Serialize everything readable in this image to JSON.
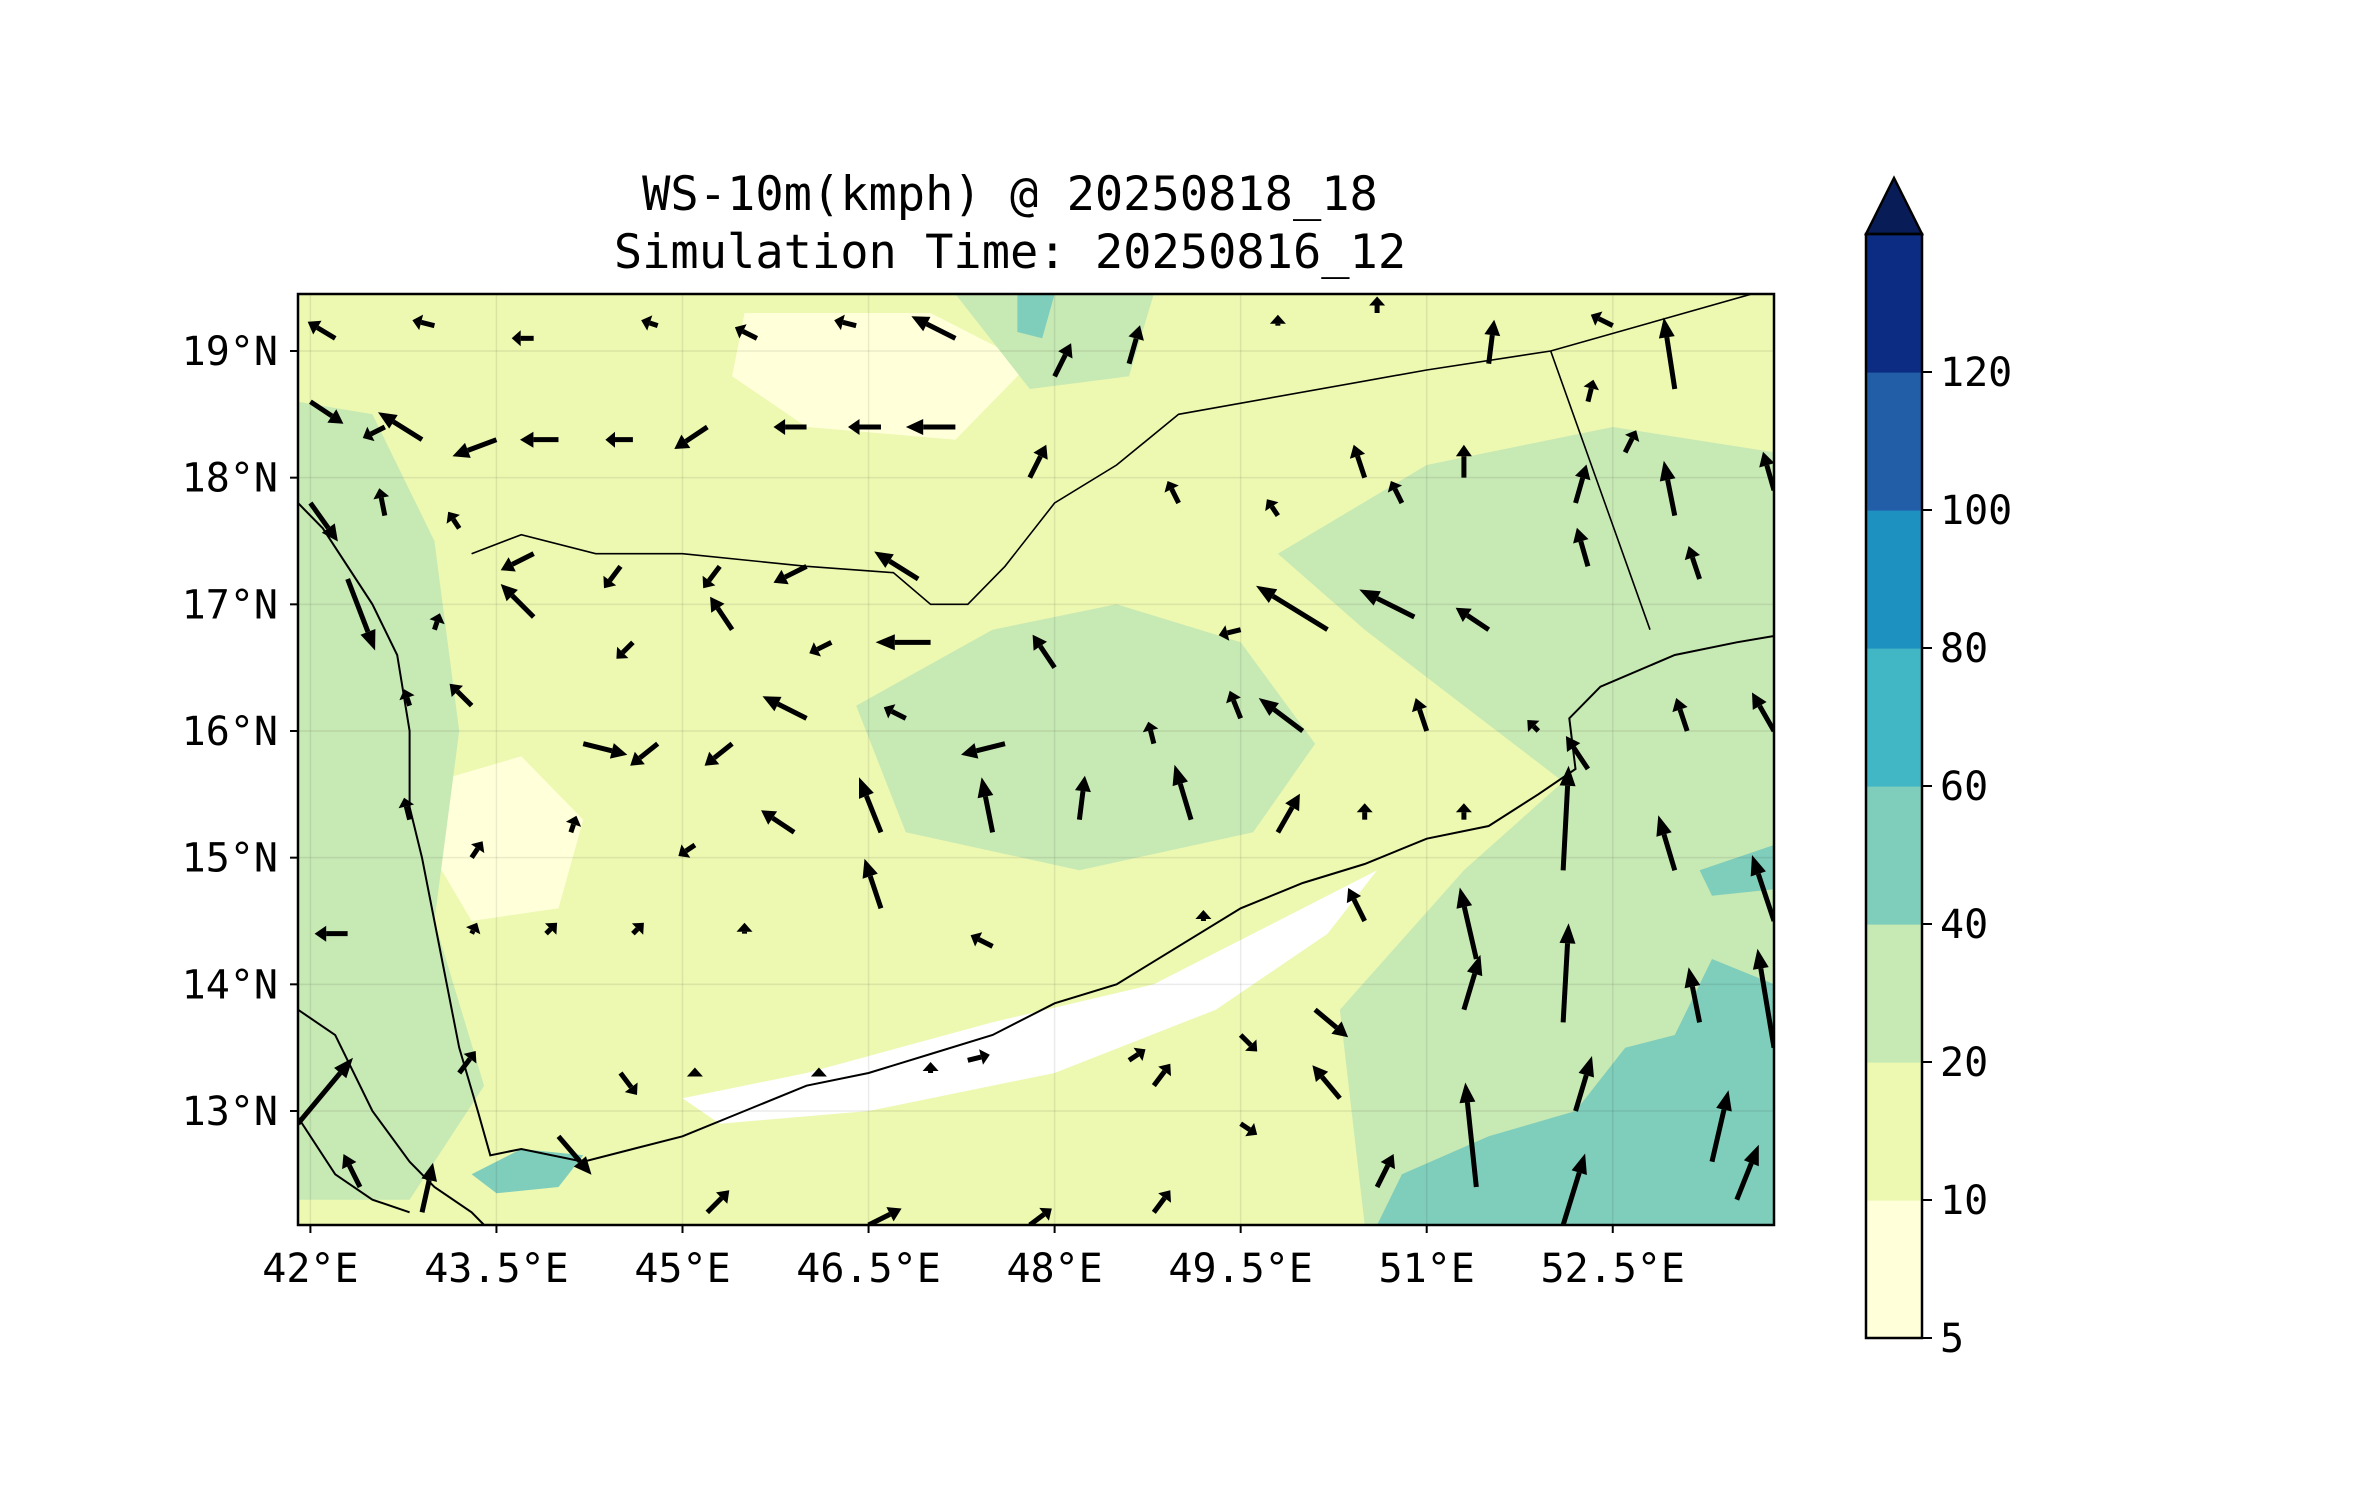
{
  "chart_data": {
    "type": "heatmap",
    "title_line1": "WS-10m(kmph) @ 20250818_18",
    "title_line2": "Simulation Time: 20250816_12",
    "x_ticks": [
      "42°E",
      "43.5°E",
      "45°E",
      "46.5°E",
      "48°E",
      "49.5°E",
      "51°E",
      "52.5°E"
    ],
    "x_tick_values": [
      42,
      43.5,
      45,
      46.5,
      48,
      49.5,
      51,
      52.5
    ],
    "y_ticks": [
      "19°N",
      "18°N",
      "17°N",
      "16°N",
      "15°N",
      "14°N",
      "13°N"
    ],
    "y_tick_values": [
      19,
      18,
      17,
      16,
      15,
      14,
      13
    ],
    "xlim": [
      41.9,
      53.8
    ],
    "ylim": [
      12.1,
      19.45
    ],
    "colorbar": {
      "levels": [
        5,
        10,
        20,
        40,
        60,
        80,
        100,
        120
      ],
      "labels": [
        "5",
        "10",
        "20",
        "40",
        "60",
        "80",
        "100",
        "120"
      ],
      "colors": [
        "#ffffd9",
        "#edf8b1",
        "#c7e9b4",
        "#7fcdbb",
        "#41b6c4",
        "#1d91c0",
        "#225ea8",
        "#0c2c84"
      ],
      "extend_color": "#081d58",
      "extend": "max"
    },
    "background_color": "#edf8b1",
    "regions": [
      {
        "name": "calm-gulf",
        "color": "#ffffff",
        "points": [
          [
            45.0,
            13.1
          ],
          [
            46.0,
            13.3
          ],
          [
            47.5,
            13.7
          ],
          [
            48.8,
            14.0
          ],
          [
            49.8,
            14.5
          ],
          [
            50.6,
            14.9
          ],
          [
            50.2,
            14.4
          ],
          [
            49.3,
            13.8
          ],
          [
            48.0,
            13.3
          ],
          [
            46.5,
            13.0
          ],
          [
            45.3,
            12.9
          ]
        ]
      },
      {
        "name": "calm-tihama",
        "color": "#ffffd9",
        "points": [
          [
            43.0,
            15.6
          ],
          [
            43.7,
            15.8
          ],
          [
            44.2,
            15.3
          ],
          [
            44.0,
            14.6
          ],
          [
            43.3,
            14.5
          ],
          [
            43.0,
            15.0
          ]
        ]
      },
      {
        "name": "calm-north",
        "color": "#ffffd9",
        "points": [
          [
            45.5,
            19.3
          ],
          [
            47.0,
            19.3
          ],
          [
            47.8,
            18.9
          ],
          [
            47.2,
            18.3
          ],
          [
            46.0,
            18.4
          ],
          [
            45.4,
            18.8
          ]
        ]
      },
      {
        "name": "moderate-west",
        "color": "#c7e9b4",
        "points": [
          [
            41.9,
            18.6
          ],
          [
            42.5,
            18.5
          ],
          [
            43.0,
            17.5
          ],
          [
            43.2,
            16.0
          ],
          [
            43.0,
            14.5
          ],
          [
            43.4,
            13.2
          ],
          [
            42.8,
            12.3
          ],
          [
            41.9,
            12.3
          ]
        ]
      },
      {
        "name": "moderate-central",
        "color": "#c7e9b4",
        "points": [
          [
            46.4,
            16.2
          ],
          [
            47.5,
            16.8
          ],
          [
            48.5,
            17.0
          ],
          [
            49.5,
            16.7
          ],
          [
            50.1,
            15.9
          ],
          [
            49.6,
            15.2
          ],
          [
            48.2,
            14.9
          ],
          [
            46.8,
            15.2
          ]
        ]
      },
      {
        "name": "moderate-east",
        "color": "#c7e9b4",
        "points": [
          [
            49.8,
            17.4
          ],
          [
            51.0,
            18.1
          ],
          [
            52.5,
            18.4
          ],
          [
            53.8,
            18.2
          ],
          [
            53.8,
            12.1
          ],
          [
            50.5,
            12.1
          ],
          [
            50.3,
            13.8
          ],
          [
            51.3,
            14.9
          ],
          [
            52.1,
            15.6
          ],
          [
            51.3,
            16.2
          ],
          [
            50.5,
            16.8
          ]
        ]
      },
      {
        "name": "moderate-north",
        "color": "#c7e9b4",
        "points": [
          [
            47.2,
            19.45
          ],
          [
            48.8,
            19.45
          ],
          [
            48.6,
            18.8
          ],
          [
            47.8,
            18.7
          ]
        ]
      },
      {
        "name": "strong-sea",
        "color": "#7fcdbb",
        "points": [
          [
            50.6,
            12.1
          ],
          [
            53.8,
            12.1
          ],
          [
            53.8,
            14.0
          ],
          [
            53.3,
            14.2
          ],
          [
            53.0,
            13.6
          ],
          [
            52.6,
            13.5
          ],
          [
            52.2,
            13.0
          ],
          [
            51.5,
            12.8
          ],
          [
            50.8,
            12.5
          ]
        ]
      },
      {
        "name": "strong-bab",
        "color": "#7fcdbb",
        "points": [
          [
            43.3,
            12.5
          ],
          [
            43.7,
            12.7
          ],
          [
            44.2,
            12.65
          ],
          [
            44.0,
            12.4
          ],
          [
            43.5,
            12.35
          ]
        ]
      },
      {
        "name": "strong-north",
        "color": "#7fcdbb",
        "points": [
          [
            47.7,
            19.45
          ],
          [
            48.0,
            19.45
          ],
          [
            47.9,
            19.1
          ],
          [
            47.7,
            19.15
          ]
        ]
      },
      {
        "name": "strong-east-spot",
        "color": "#7fcdbb",
        "points": [
          [
            53.2,
            14.9
          ],
          [
            53.8,
            15.1
          ],
          [
            53.8,
            14.75
          ],
          [
            53.3,
            14.7
          ]
        ]
      }
    ],
    "coastlines": [
      [
        [
          41.9,
          17.8
        ],
        [
          42.1,
          17.6
        ],
        [
          42.5,
          17.0
        ],
        [
          42.7,
          16.6
        ],
        [
          42.8,
          16.0
        ],
        [
          42.8,
          15.4
        ],
        [
          42.9,
          15.0
        ],
        [
          43.0,
          14.5
        ],
        [
          43.1,
          14.0
        ],
        [
          43.2,
          13.5
        ],
        [
          43.35,
          13.0
        ],
        [
          43.45,
          12.65
        ],
        [
          43.7,
          12.7
        ],
        [
          44.2,
          12.6
        ],
        [
          44.6,
          12.7
        ],
        [
          45.0,
          12.8
        ],
        [
          45.5,
          13.0
        ],
        [
          46.0,
          13.2
        ],
        [
          46.5,
          13.3
        ],
        [
          47.0,
          13.45
        ],
        [
          47.5,
          13.6
        ],
        [
          48.0,
          13.85
        ],
        [
          48.5,
          14.0
        ],
        [
          49.0,
          14.3
        ],
        [
          49.5,
          14.6
        ],
        [
          50.0,
          14.8
        ],
        [
          50.5,
          14.95
        ],
        [
          51.0,
          15.15
        ],
        [
          51.5,
          15.25
        ],
        [
          51.9,
          15.5
        ],
        [
          52.2,
          15.7
        ],
        [
          52.15,
          16.1
        ],
        [
          52.4,
          16.35
        ],
        [
          53.0,
          16.6
        ],
        [
          53.5,
          16.7
        ],
        [
          53.8,
          16.75
        ]
      ],
      [
        [
          41.9,
          13.8
        ],
        [
          42.2,
          13.6
        ],
        [
          42.5,
          13.0
        ],
        [
          42.8,
          12.6
        ],
        [
          43.0,
          12.4
        ],
        [
          43.3,
          12.2
        ],
        [
          43.4,
          12.1
        ]
      ],
      [
        [
          41.9,
          12.95
        ],
        [
          42.2,
          12.5
        ],
        [
          42.5,
          12.3
        ],
        [
          42.8,
          12.2
        ]
      ]
    ],
    "borders": [
      [
        [
          43.3,
          17.4
        ],
        [
          43.7,
          17.55
        ],
        [
          44.3,
          17.4
        ],
        [
          45.0,
          17.4
        ],
        [
          46.0,
          17.3
        ],
        [
          46.7,
          17.25
        ],
        [
          47.0,
          17.0
        ],
        [
          47.3,
          17.0
        ],
        [
          47.6,
          17.3
        ],
        [
          48.0,
          17.8
        ],
        [
          48.5,
          18.1
        ],
        [
          49.0,
          18.5
        ],
        [
          51.0,
          18.85
        ],
        [
          52.0,
          19.0
        ],
        [
          53.8,
          19.5
        ]
      ],
      [
        [
          52.0,
          19.0
        ],
        [
          52.8,
          16.8
        ]
      ]
    ],
    "vectors": [
      [
        42.0,
        18.6,
        60,
        -40
      ],
      [
        42.6,
        18.4,
        -40,
        -20
      ],
      [
        42.9,
        18.3,
        -80,
        50
      ],
      [
        43.5,
        18.3,
        -80,
        -30
      ],
      [
        44.0,
        18.3,
        -70,
        0
      ],
      [
        44.6,
        18.3,
        -50,
        0
      ],
      [
        45.2,
        18.4,
        -60,
        -40
      ],
      [
        46.0,
        18.4,
        -60,
        0
      ],
      [
        46.6,
        18.4,
        -60,
        0
      ],
      [
        47.2,
        18.4,
        -90,
        0
      ],
      [
        42.0,
        17.8,
        50,
        -70
      ],
      [
        42.6,
        17.7,
        -10,
        50
      ],
      [
        43.2,
        17.6,
        -20,
        30
      ],
      [
        43.8,
        17.4,
        -60,
        -30
      ],
      [
        44.5,
        17.3,
        -30,
        -40
      ],
      [
        45.3,
        17.3,
        -30,
        -40
      ],
      [
        46.0,
        17.3,
        -60,
        -30
      ],
      [
        46.9,
        17.2,
        -80,
        50
      ],
      [
        42.3,
        17.2,
        50,
        -130
      ],
      [
        43.0,
        16.8,
        10,
        30
      ],
      [
        43.8,
        16.9,
        -60,
        60
      ],
      [
        44.6,
        16.7,
        -30,
        -30
      ],
      [
        45.4,
        16.8,
        -40,
        60
      ],
      [
        46.2,
        16.7,
        -40,
        -20
      ],
      [
        47.0,
        16.7,
        -100,
        0
      ],
      [
        48.0,
        16.5,
        -40,
        60
      ],
      [
        49.5,
        16.8,
        -40,
        -10
      ],
      [
        50.2,
        16.8,
        -130,
        80
      ],
      [
        50.9,
        16.9,
        -100,
        50
      ],
      [
        51.5,
        16.8,
        -60,
        40
      ],
      [
        42.8,
        16.2,
        -10,
        30
      ],
      [
        43.3,
        16.2,
        -40,
        40
      ],
      [
        44.2,
        15.9,
        80,
        -20
      ],
      [
        44.8,
        15.9,
        -50,
        -40
      ],
      [
        45.4,
        15.9,
        -50,
        -40
      ],
      [
        46.0,
        16.1,
        -80,
        40
      ],
      [
        46.8,
        16.1,
        -40,
        20
      ],
      [
        47.6,
        15.9,
        -80,
        -20
      ],
      [
        48.8,
        15.9,
        -10,
        40
      ],
      [
        49.5,
        16.1,
        -20,
        50
      ],
      [
        50.0,
        16.0,
        -80,
        60
      ],
      [
        51.0,
        16.0,
        -20,
        60
      ],
      [
        51.9,
        16.0,
        -20,
        20
      ],
      [
        52.3,
        15.7,
        -40,
        60
      ],
      [
        53.1,
        16.0,
        -20,
        60
      ],
      [
        53.8,
        16.0,
        -40,
        70
      ],
      [
        42.8,
        15.3,
        -10,
        40
      ],
      [
        43.3,
        15.0,
        20,
        30
      ],
      [
        44.1,
        15.2,
        10,
        30
      ],
      [
        45.1,
        15.1,
        -30,
        -20
      ],
      [
        45.9,
        15.2,
        -60,
        40
      ],
      [
        46.6,
        15.2,
        -40,
        100
      ],
      [
        47.5,
        15.2,
        -20,
        100
      ],
      [
        48.2,
        15.3,
        10,
        80
      ],
      [
        49.1,
        15.3,
        -30,
        100
      ],
      [
        49.8,
        15.2,
        40,
        70
      ],
      [
        50.5,
        15.3,
        0,
        30
      ],
      [
        51.3,
        15.3,
        0,
        30
      ],
      [
        52.1,
        14.9,
        10,
        190
      ],
      [
        53.0,
        14.9,
        -30,
        100
      ],
      [
        53.8,
        14.5,
        -40,
        120
      ],
      [
        42.3,
        14.4,
        -60,
        0
      ],
      [
        43.3,
        14.4,
        10,
        20
      ],
      [
        43.9,
        14.4,
        20,
        20
      ],
      [
        44.6,
        14.4,
        20,
        20
      ],
      [
        45.5,
        14.4,
        0,
        20
      ],
      [
        46.6,
        14.6,
        -30,
        90
      ],
      [
        47.5,
        14.3,
        -40,
        20
      ],
      [
        49.2,
        14.5,
        0,
        20
      ],
      [
        50.5,
        14.5,
        -30,
        60
      ],
      [
        51.4,
        14.2,
        -30,
        130
      ],
      [
        52.1,
        13.7,
        10,
        180
      ],
      [
        53.2,
        13.7,
        -20,
        100
      ],
      [
        53.8,
        13.5,
        -30,
        180
      ],
      [
        41.9,
        12.9,
        100,
        120
      ],
      [
        43.2,
        13.3,
        30,
        40
      ],
      [
        44.5,
        13.3,
        30,
        -40
      ],
      [
        45.1,
        13.3,
        0,
        10
      ],
      [
        46.1,
        13.3,
        0,
        10
      ],
      [
        47.0,
        13.3,
        0,
        20
      ],
      [
        47.3,
        13.4,
        40,
        10
      ],
      [
        48.6,
        13.4,
        30,
        20
      ],
      [
        48.8,
        13.2,
        30,
        40
      ],
      [
        49.5,
        13.6,
        30,
        -30
      ],
      [
        50.1,
        13.8,
        60,
        -50
      ],
      [
        50.3,
        13.1,
        -50,
        60
      ],
      [
        51.3,
        13.8,
        30,
        100
      ],
      [
        52.2,
        13.0,
        30,
        100
      ],
      [
        53.3,
        12.6,
        30,
        130
      ],
      [
        42.4,
        12.4,
        -30,
        60
      ],
      [
        42.9,
        12.2,
        20,
        90
      ],
      [
        44.0,
        12.8,
        60,
        -70
      ],
      [
        45.2,
        12.2,
        40,
        40
      ],
      [
        46.5,
        12.1,
        60,
        30
      ],
      [
        47.2,
        12.0,
        60,
        0
      ],
      [
        47.8,
        12.1,
        40,
        30
      ],
      [
        48.8,
        12.2,
        30,
        40
      ],
      [
        49.5,
        12.9,
        30,
        -20
      ],
      [
        50.6,
        12.4,
        30,
        60
      ],
      [
        51.4,
        12.4,
        -20,
        190
      ],
      [
        52.1,
        12.1,
        40,
        130
      ],
      [
        53.5,
        12.3,
        40,
        100
      ],
      [
        47.2,
        19.1,
        -80,
        40
      ],
      [
        48.0,
        18.8,
        30,
        60
      ],
      [
        48.6,
        18.9,
        20,
        70
      ],
      [
        49.8,
        19.2,
        0,
        20
      ],
      [
        50.6,
        19.3,
        0,
        30
      ],
      [
        51.5,
        18.9,
        10,
        80
      ],
      [
        52.3,
        18.6,
        10,
        40
      ],
      [
        53.0,
        18.7,
        -20,
        130
      ],
      [
        52.5,
        19.2,
        -40,
        20
      ],
      [
        42.2,
        19.1,
        -50,
        30
      ],
      [
        43.0,
        19.2,
        -40,
        10
      ],
      [
        43.8,
        19.1,
        -40,
        0
      ],
      [
        44.8,
        19.2,
        -30,
        10
      ],
      [
        45.6,
        19.1,
        -40,
        20
      ],
      [
        46.4,
        19.2,
        -40,
        10
      ],
      [
        47.8,
        18.0,
        30,
        60
      ],
      [
        49.0,
        17.8,
        -20,
        40
      ],
      [
        50.5,
        18.0,
        -20,
        60
      ],
      [
        51.3,
        18.0,
        0,
        60
      ],
      [
        52.2,
        17.8,
        20,
        70
      ],
      [
        53.0,
        17.7,
        -20,
        100
      ],
      [
        53.8,
        17.9,
        -20,
        70
      ],
      [
        49.8,
        17.7,
        -20,
        30
      ],
      [
        52.3,
        17.3,
        -20,
        70
      ],
      [
        53.2,
        17.2,
        -20,
        60
      ],
      [
        50.8,
        17.8,
        -20,
        40
      ],
      [
        52.6,
        18.2,
        20,
        40
      ]
    ]
  }
}
